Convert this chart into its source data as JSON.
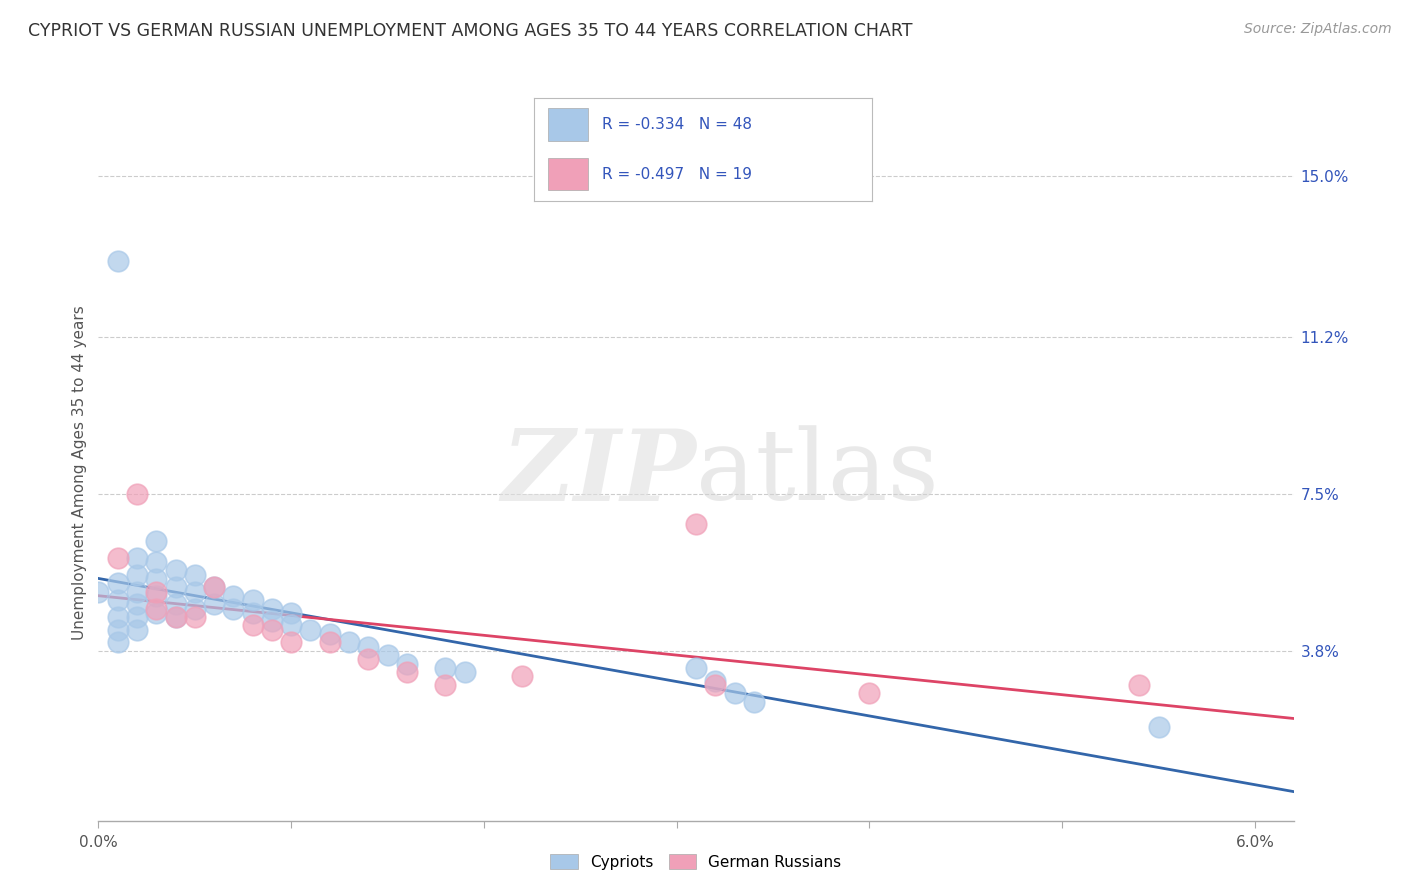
{
  "title": "CYPRIOT VS GERMAN RUSSIAN UNEMPLOYMENT AMONG AGES 35 TO 44 YEARS CORRELATION CHART",
  "source": "Source: ZipAtlas.com",
  "ylabel": "Unemployment Among Ages 35 to 44 years",
  "xlim": [
    0.0,
    0.062
  ],
  "ylim": [
    -0.002,
    0.162
  ],
  "ytick_labels_right": [
    [
      0.038,
      "3.8%"
    ],
    [
      0.075,
      "7.5%"
    ],
    [
      0.112,
      "11.2%"
    ],
    [
      0.15,
      "15.0%"
    ]
  ],
  "cypriot_color": "#a8c8e8",
  "german_russian_color": "#f0a0b8",
  "trend_cypriot_color": "#3366aa",
  "trend_german_color": "#dd4466",
  "legend_text_color": "#3355bb",
  "background_color": "#ffffff",
  "grid_color": "#cccccc",
  "cypriot_x": [
    0.0,
    0.001,
    0.001,
    0.001,
    0.001,
    0.001,
    0.001,
    0.002,
    0.002,
    0.002,
    0.002,
    0.002,
    0.002,
    0.003,
    0.003,
    0.003,
    0.003,
    0.003,
    0.004,
    0.004,
    0.004,
    0.004,
    0.005,
    0.005,
    0.005,
    0.006,
    0.006,
    0.007,
    0.007,
    0.008,
    0.008,
    0.009,
    0.009,
    0.01,
    0.01,
    0.011,
    0.012,
    0.013,
    0.014,
    0.015,
    0.016,
    0.018,
    0.019,
    0.031,
    0.032,
    0.033,
    0.034,
    0.055
  ],
  "cypriot_y": [
    0.052,
    0.13,
    0.054,
    0.05,
    0.046,
    0.043,
    0.04,
    0.06,
    0.056,
    0.052,
    0.049,
    0.046,
    0.043,
    0.064,
    0.059,
    0.055,
    0.051,
    0.047,
    0.057,
    0.053,
    0.049,
    0.046,
    0.056,
    0.052,
    0.048,
    0.053,
    0.049,
    0.051,
    0.048,
    0.05,
    0.047,
    0.048,
    0.045,
    0.047,
    0.044,
    0.043,
    0.042,
    0.04,
    0.039,
    0.037,
    0.035,
    0.034,
    0.033,
    0.034,
    0.031,
    0.028,
    0.026,
    0.02
  ],
  "german_russian_x": [
    0.001,
    0.002,
    0.003,
    0.003,
    0.004,
    0.005,
    0.006,
    0.008,
    0.009,
    0.01,
    0.012,
    0.014,
    0.016,
    0.018,
    0.022,
    0.031,
    0.032,
    0.04,
    0.054
  ],
  "german_russian_y": [
    0.06,
    0.075,
    0.052,
    0.048,
    0.046,
    0.046,
    0.053,
    0.044,
    0.043,
    0.04,
    0.04,
    0.036,
    0.033,
    0.03,
    0.032,
    0.068,
    0.03,
    0.028,
    0.03
  ],
  "trend_cypriot_x0": 0.0,
  "trend_cypriot_x1": 0.062,
  "trend_german_x0": 0.0,
  "trend_german_x1": 0.062
}
